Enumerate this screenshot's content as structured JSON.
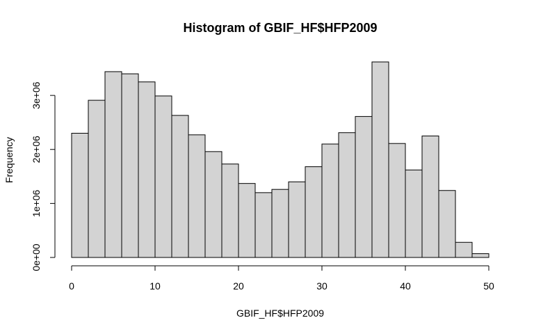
{
  "chart_data": {
    "type": "bar",
    "title": "Histogram of GBIF_HF$HFP2009",
    "xlabel": "GBIF_HF$HFP2009",
    "ylabel": "Frequency",
    "bin_width": 2,
    "bins_start": 0,
    "values": [
      2300000,
      2910000,
      3440000,
      3400000,
      3250000,
      2990000,
      2630000,
      2270000,
      1960000,
      1730000,
      1370000,
      1200000,
      1260000,
      1400000,
      1680000,
      2100000,
      2310000,
      2610000,
      3620000,
      2110000,
      1620000,
      2250000,
      1240000,
      280000,
      70000
    ],
    "xlim": [
      0,
      50
    ],
    "ylim": [
      0,
      3620000
    ],
    "x_ticks": [
      0,
      10,
      20,
      30,
      40,
      50
    ],
    "x_tick_labels": [
      "0",
      "10",
      "20",
      "30",
      "40",
      "50"
    ],
    "y_ticks": [
      0,
      1000000,
      2000000,
      3000000
    ],
    "y_tick_labels": [
      "0e+00",
      "1e+06",
      "2e+06",
      "3e+06"
    ],
    "colors": {
      "bar_fill": "#d3d3d3",
      "bar_stroke": "#000000"
    }
  }
}
